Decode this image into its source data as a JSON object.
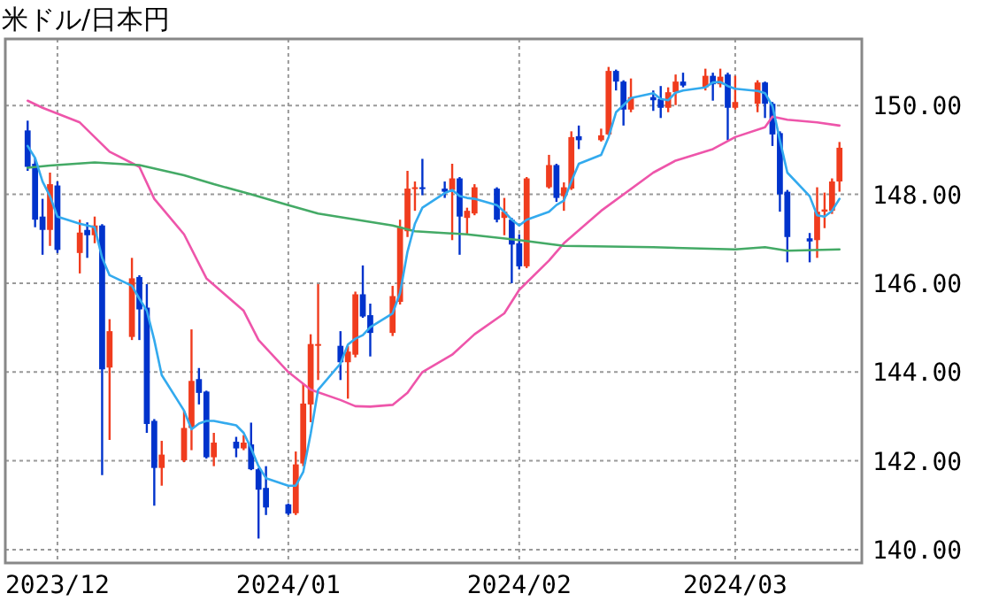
{
  "chart_data": {
    "type": "candlestick",
    "title": "米ドル/日本円",
    "x": [
      "2023-11-27",
      "2023-11-28",
      "2023-11-29",
      "2023-11-30",
      "2023-12-01",
      "2023-12-04",
      "2023-12-05",
      "2023-12-06",
      "2023-12-07",
      "2023-12-08",
      "2023-12-11",
      "2023-12-12",
      "2023-12-13",
      "2023-12-14",
      "2023-12-15",
      "2023-12-18",
      "2023-12-19",
      "2023-12-20",
      "2023-12-21",
      "2023-12-22",
      "2023-12-25",
      "2023-12-26",
      "2023-12-27",
      "2023-12-28",
      "2023-12-29",
      "2024-01-01",
      "2024-01-02",
      "2024-01-03",
      "2024-01-04",
      "2024-01-05",
      "2024-01-08",
      "2024-01-09",
      "2024-01-10",
      "2024-01-11",
      "2024-01-12",
      "2024-01-15",
      "2024-01-16",
      "2024-01-17",
      "2024-01-18",
      "2024-01-19",
      "2024-01-22",
      "2024-01-23",
      "2024-01-24",
      "2024-01-25",
      "2024-01-26",
      "2024-01-29",
      "2024-01-30",
      "2024-01-31",
      "2024-02-01",
      "2024-02-02",
      "2024-02-05",
      "2024-02-06",
      "2024-02-07",
      "2024-02-08",
      "2024-02-09",
      "2024-02-12",
      "2024-02-13",
      "2024-02-14",
      "2024-02-15",
      "2024-02-16",
      "2024-02-19",
      "2024-02-20",
      "2024-02-21",
      "2024-02-22",
      "2024-02-23",
      "2024-02-26",
      "2024-02-27",
      "2024-02-28",
      "2024-02-29",
      "2024-03-01",
      "2024-03-04",
      "2024-03-05",
      "2024-03-06",
      "2024-03-07",
      "2024-03-08",
      "2024-03-11",
      "2024-03-12",
      "2024-03-13",
      "2024-03-14",
      "2024-03-15"
    ],
    "ohlc": [
      [
        149.44,
        149.66,
        148.53,
        148.62
      ],
      [
        148.69,
        148.82,
        147.26,
        147.43
      ],
      [
        147.5,
        147.9,
        146.64,
        147.2
      ],
      [
        147.2,
        148.49,
        146.84,
        148.23
      ],
      [
        148.2,
        148.29,
        146.68,
        146.75
      ],
      [
        146.68,
        147.43,
        146.22,
        147.14
      ],
      [
        147.2,
        147.37,
        146.57,
        147.08
      ],
      [
        147.08,
        147.5,
        146.9,
        147.3
      ],
      [
        147.3,
        147.33,
        141.68,
        144.06
      ],
      [
        144.1,
        145.19,
        142.47,
        144.92
      ],
      [
        144.79,
        146.57,
        144.72,
        146.11
      ],
      [
        146.14,
        146.18,
        144.72,
        145.41
      ],
      [
        145.45,
        145.98,
        142.63,
        142.83
      ],
      [
        142.9,
        142.94,
        140.99,
        141.84
      ],
      [
        141.84,
        142.45,
        141.44,
        142.14
      ],
      [
        142.01,
        143.13,
        141.97,
        142.74
      ],
      [
        142.74,
        144.96,
        142.24,
        143.8
      ],
      [
        143.84,
        144.09,
        143.27,
        143.53
      ],
      [
        143.56,
        143.58,
        142.05,
        142.08
      ],
      [
        142.08,
        142.63,
        141.88,
        142.41
      ],
      [
        142.43,
        142.54,
        142.08,
        142.28
      ],
      [
        142.28,
        142.58,
        142.24,
        142.41
      ],
      [
        142.37,
        142.86,
        141.79,
        141.81
      ],
      [
        141.81,
        141.84,
        140.25,
        141.35
      ],
      [
        141.39,
        141.88,
        140.78,
        140.95
      ],
      [
        141.02,
        141.04,
        140.78,
        140.81
      ],
      [
        140.82,
        142.21,
        140.78,
        141.92
      ],
      [
        141.94,
        143.73,
        141.88,
        143.29
      ],
      [
        143.27,
        144.85,
        142.87,
        144.63
      ],
      [
        144.59,
        145.98,
        143.82,
        144.63
      ],
      [
        144.59,
        144.92,
        143.82,
        144.22
      ],
      [
        144.22,
        144.59,
        143.4,
        144.46
      ],
      [
        144.39,
        145.81,
        144.33,
        145.75
      ],
      [
        145.75,
        146.4,
        145.22,
        145.25
      ],
      [
        145.28,
        145.54,
        144.35,
        144.88
      ],
      [
        144.88,
        145.94,
        144.81,
        145.71
      ],
      [
        145.58,
        147.43,
        145.52,
        147.26
      ],
      [
        147.17,
        148.53,
        147.04,
        148.13
      ],
      [
        148.12,
        148.29,
        147.63,
        148.16
      ],
      [
        148.16,
        148.8,
        147.98,
        148.12
      ],
      [
        148.13,
        148.29,
        147.92,
        148.06
      ],
      [
        148.1,
        148.69,
        146.97,
        148.36
      ],
      [
        148.36,
        148.39,
        146.64,
        147.5
      ],
      [
        147.47,
        147.7,
        147.1,
        147.63
      ],
      [
        147.57,
        148.23,
        147.53,
        148.16
      ],
      [
        148.13,
        148.16,
        147.37,
        147.43
      ],
      [
        147.47,
        147.92,
        147.08,
        147.61
      ],
      [
        147.43,
        147.47,
        146.0,
        146.87
      ],
      [
        146.9,
        147.1,
        146.31,
        146.38
      ],
      [
        146.38,
        148.39,
        146.34,
        148.36
      ],
      [
        148.16,
        148.89,
        148.13,
        148.66
      ],
      [
        148.66,
        148.69,
        147.83,
        147.92
      ],
      [
        147.96,
        148.27,
        147.63,
        148.16
      ],
      [
        148.13,
        149.42,
        148.1,
        149.29
      ],
      [
        149.31,
        149.55,
        149.02,
        149.22
      ],
      [
        149.22,
        149.48,
        149.19,
        149.33
      ],
      [
        149.35,
        150.87,
        149.33,
        150.78
      ],
      [
        150.78,
        150.81,
        150.34,
        150.54
      ],
      [
        150.54,
        150.57,
        149.55,
        149.91
      ],
      [
        149.91,
        150.61,
        149.85,
        150.19
      ],
      [
        150.19,
        150.34,
        149.88,
        150.12
      ],
      [
        150.15,
        150.44,
        149.72,
        149.95
      ],
      [
        149.95,
        150.41,
        149.85,
        150.3
      ],
      [
        150.3,
        150.7,
        150.01,
        150.54
      ],
      [
        150.54,
        150.74,
        150.41,
        150.45
      ],
      [
        150.41,
        150.83,
        150.34,
        150.67
      ],
      [
        150.67,
        150.74,
        150.11,
        150.48
      ],
      [
        150.48,
        150.83,
        150.41,
        150.65
      ],
      [
        150.7,
        150.74,
        149.22,
        149.95
      ],
      [
        149.95,
        150.67,
        149.91,
        150.08
      ],
      [
        150.04,
        150.57,
        149.85,
        150.52
      ],
      [
        150.52,
        150.54,
        149.72,
        150.04
      ],
      [
        150.04,
        150.08,
        149.09,
        149.35
      ],
      [
        149.38,
        149.42,
        147.61,
        148.0
      ],
      [
        148.06,
        148.1,
        146.47,
        147.04
      ],
      [
        147.01,
        147.13,
        146.47,
        146.94
      ],
      [
        146.97,
        148.16,
        146.57,
        147.61
      ],
      [
        147.61,
        148.04,
        147.24,
        147.66
      ],
      [
        147.63,
        148.36,
        147.56,
        148.29
      ],
      [
        148.29,
        149.18,
        148.06,
        149.05
      ]
    ],
    "colors": [
      "#0033cc",
      "#0033cc",
      "#0033cc",
      "#f03c1e",
      "#0033cc",
      "#f03c1e",
      "#0033cc",
      "#f03c1e",
      "#0033cc",
      "#f03c1e",
      "#f03c1e",
      "#0033cc",
      "#0033cc",
      "#0033cc",
      "#f03c1e",
      "#f03c1e",
      "#f03c1e",
      "#0033cc",
      "#0033cc",
      "#f03c1e",
      "#0033cc",
      "#f03c1e",
      "#0033cc",
      "#0033cc",
      "#0033cc",
      "#0033cc",
      "#f03c1e",
      "#f03c1e",
      "#f03c1e",
      "#f03c1e",
      "#0033cc",
      "#f03c1e",
      "#f03c1e",
      "#0033cc",
      "#0033cc",
      "#f03c1e",
      "#f03c1e",
      "#f03c1e",
      "#f03c1e",
      "#0033cc",
      "#0033cc",
      "#f03c1e",
      "#0033cc",
      "#f03c1e",
      "#f03c1e",
      "#0033cc",
      "#f03c1e",
      "#0033cc",
      "#0033cc",
      "#f03c1e",
      "#f03c1e",
      "#0033cc",
      "#f03c1e",
      "#f03c1e",
      "#0033cc",
      "#f03c1e",
      "#f03c1e",
      "#0033cc",
      "#0033cc",
      "#f03c1e",
      "#0033cc",
      "#0033cc",
      "#f03c1e",
      "#f03c1e",
      "#0033cc",
      "#f03c1e",
      "#0033cc",
      "#f03c1e",
      "#0033cc",
      "#f03c1e",
      "#f03c1e",
      "#0033cc",
      "#0033cc",
      "#0033cc",
      "#0033cc",
      "#0033cc",
      "#f03c1e",
      "#f03c1e",
      "#f03c1e",
      "#f03c1e"
    ],
    "series": [
      {
        "type": "line",
        "color": "#ee55aa",
        "x": [
          "2023-11-27",
          "2023-11-29",
          "2023-12-04",
          "2023-12-06",
          "2023-12-08",
          "2023-12-12",
          "2023-12-14",
          "2023-12-18",
          "2023-12-21",
          "2023-12-26",
          "2023-12-28",
          "2024-01-01",
          "2024-01-04",
          "2024-01-08",
          "2024-01-10",
          "2024-01-12",
          "2024-01-15",
          "2024-01-17",
          "2024-01-19",
          "2024-01-23",
          "2024-01-26",
          "2024-01-30",
          "2024-02-01",
          "2024-02-05",
          "2024-02-07",
          "2024-02-12",
          "2024-02-19",
          "2024-02-22",
          "2024-02-27",
          "2024-03-01",
          "2024-03-05",
          "2024-03-06",
          "2024-03-08",
          "2024-03-12",
          "2024-03-15"
        ],
        "values": [
          150.11,
          149.95,
          149.62,
          149.29,
          148.96,
          148.62,
          147.9,
          147.1,
          146.11,
          145.38,
          144.72,
          144.0,
          143.6,
          143.37,
          143.23,
          143.22,
          143.26,
          143.53,
          144.0,
          144.39,
          144.85,
          145.32,
          145.85,
          146.51,
          146.9,
          147.63,
          148.49,
          148.76,
          149.02,
          149.29,
          149.51,
          149.75,
          149.68,
          149.62,
          149.55
        ]
      },
      {
        "type": "line",
        "color": "#44aa66",
        "x": [
          "2023-11-27",
          "2023-11-30",
          "2023-12-06",
          "2023-12-12",
          "2023-12-18",
          "2023-12-22",
          "2023-12-27",
          "2024-01-01",
          "2024-01-05",
          "2024-01-15",
          "2024-01-18",
          "2024-01-25",
          "2024-02-01",
          "2024-02-07",
          "2024-02-19",
          "2024-03-01",
          "2024-03-05",
          "2024-03-08",
          "2024-03-15"
        ],
        "values": [
          148.6,
          148.65,
          148.72,
          148.66,
          148.43,
          148.23,
          148.0,
          147.76,
          147.57,
          147.3,
          147.17,
          147.1,
          146.97,
          146.84,
          146.81,
          146.76,
          146.81,
          146.73,
          146.76
        ]
      },
      {
        "type": "line",
        "color": "#33aaee",
        "values": [
          149.09,
          148.82,
          148.29,
          147.96,
          147.5,
          147.34,
          147.3,
          147.26,
          146.57,
          146.18,
          145.94,
          145.65,
          145.38,
          144.72,
          143.93,
          143.13,
          142.71,
          142.84,
          142.9,
          142.9,
          142.8,
          142.63,
          142.28,
          141.88,
          141.61,
          141.44,
          141.44,
          141.75,
          142.61,
          143.6,
          144.19,
          144.62,
          144.75,
          144.83,
          145.01,
          145.32,
          145.78,
          146.71,
          147.34,
          147.7,
          148.03,
          148.1,
          147.96,
          147.92,
          147.9,
          147.76,
          147.61,
          147.43,
          147.3,
          147.43,
          147.61,
          147.76,
          147.86,
          148.29,
          148.69,
          148.89,
          149.29,
          149.85,
          150.01,
          150.17,
          150.28,
          150.15,
          150.12,
          150.29,
          150.34,
          150.41,
          150.52,
          150.53,
          150.44,
          150.38,
          150.33,
          150.28,
          149.99,
          149.22,
          148.49,
          147.96,
          147.53,
          147.5,
          147.63,
          147.9
        ]
      }
    ],
    "xlim": [
      "2023-11-24",
      "2024-03-18"
    ],
    "xticks": [
      {
        "value": "2023-12-01",
        "label": "2023/12"
      },
      {
        "value": "2024-01-01",
        "label": "2024/01"
      },
      {
        "value": "2024-02-01",
        "label": "2024/02"
      },
      {
        "value": "2024-03-01",
        "label": "2024/03"
      }
    ],
    "ylim": [
      139.7,
      151.5
    ],
    "yticks": [
      {
        "value": 140,
        "label": "140.00"
      },
      {
        "value": 142,
        "label": "142.00"
      },
      {
        "value": 144,
        "label": "144.00"
      },
      {
        "value": 146,
        "label": "146.00"
      },
      {
        "value": 148,
        "label": "148.00"
      },
      {
        "value": 150,
        "label": "150.00"
      }
    ],
    "grid": true
  }
}
